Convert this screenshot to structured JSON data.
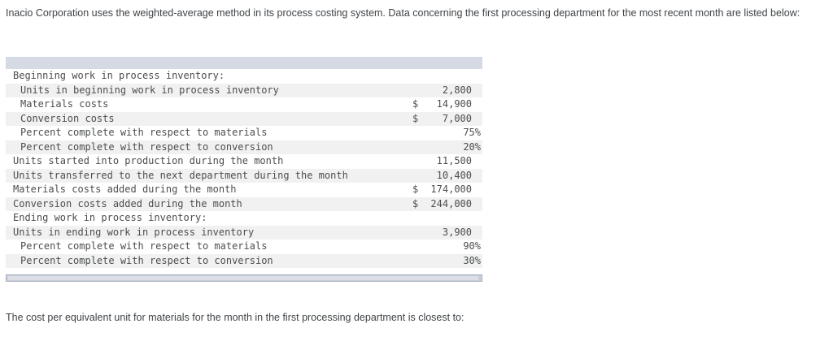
{
  "intro": "Inacio Corporation uses the weighted-average method in its process costing system. Data concerning the first processing department for the most recent month are listed below:",
  "question": "The cost per equivalent unit for materials for the month in the first processing department is closest to:",
  "table": {
    "rows": [
      {
        "label": "Beginning work in process inventory:",
        "indent": 1,
        "currency": "",
        "value": "",
        "type": "none"
      },
      {
        "label": "Units in beginning work in process inventory",
        "indent": 2,
        "currency": "",
        "value": "2,800",
        "type": "number"
      },
      {
        "label": "Materials costs",
        "indent": 2,
        "currency": "$",
        "value": "14,900",
        "type": "currency"
      },
      {
        "label": "Conversion costs",
        "indent": 2,
        "currency": "$",
        "value": "7,000",
        "type": "currency"
      },
      {
        "label": "Percent complete with respect to materials",
        "indent": 2,
        "currency": "",
        "value": "75%",
        "type": "percent"
      },
      {
        "label": "Percent complete with respect to conversion",
        "indent": 2,
        "currency": "",
        "value": "20%",
        "type": "percent"
      },
      {
        "label": "Units started into production during the month",
        "indent": 1,
        "currency": "",
        "value": "11,500",
        "type": "number"
      },
      {
        "label": "Units transferred to the next department during the month",
        "indent": 1,
        "currency": "",
        "value": "10,400",
        "type": "number"
      },
      {
        "label": "Materials costs added during the month",
        "indent": 1,
        "currency": "$",
        "value": "174,000",
        "type": "currency"
      },
      {
        "label": "Conversion costs added during the month",
        "indent": 1,
        "currency": "$",
        "value": "244,000",
        "type": "currency"
      },
      {
        "label": "Ending work in process inventory:",
        "indent": 1,
        "currency": "",
        "value": "",
        "type": "none"
      },
      {
        "label": "Units in ending work in process inventory",
        "indent": 1,
        "currency": "",
        "value": "3,900",
        "type": "number"
      },
      {
        "label": "Percent complete with respect to materials",
        "indent": 2,
        "currency": "",
        "value": "90%",
        "type": "percent"
      },
      {
        "label": "Percent complete with respect to conversion",
        "indent": 2,
        "currency": "",
        "value": "30%",
        "type": "percent"
      }
    ]
  },
  "colors": {
    "header_bar": "#d6dae5",
    "row_stripe": "#f1f1f1",
    "table_text": "#4b4d4f",
    "body_text": "#3f4347",
    "scrollbar_track": "#c9cedb",
    "scrollbar_thumb": "#dcdfe7"
  }
}
